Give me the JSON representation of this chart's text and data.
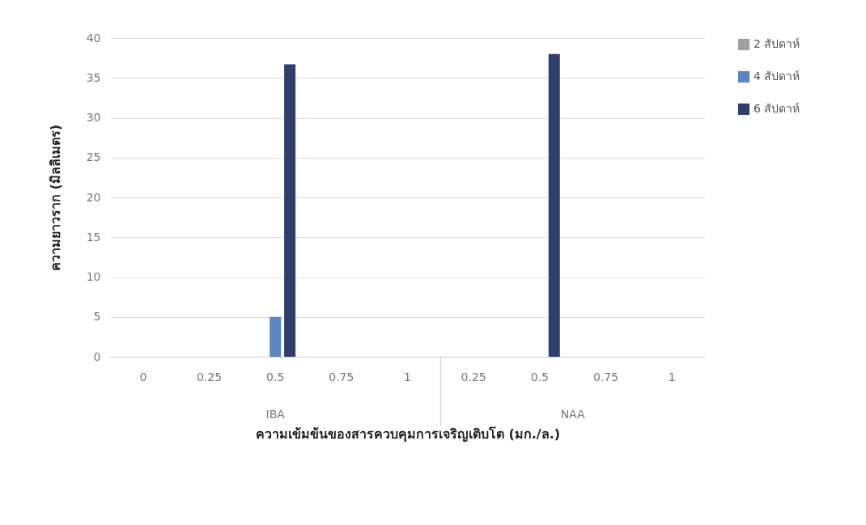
{
  "chart_data": {
    "type": "bar",
    "xlabel": "ความเข้มข้นของสารควบคุมการเจริญเติบโต (มก./ล.)",
    "ylabel": "ความยาวราก (มิลลิเมตร)",
    "categories": [
      "0",
      "0.25",
      "0.5",
      "0.75",
      "1",
      "0.25",
      "0.5",
      "0.75",
      "1"
    ],
    "series": [
      {
        "name": "2 สัปดาห์",
        "color": "#a0a0a0",
        "values": [
          0,
          0,
          0,
          0,
          0,
          0,
          0,
          0,
          0
        ]
      },
      {
        "name": "4 สัปดาห์",
        "color": "#5b86c5",
        "values": [
          0,
          0,
          5,
          0,
          0,
          0,
          0,
          0,
          0
        ]
      },
      {
        "name": "6 สัปดาห์",
        "color": "#2e3f6e",
        "values": [
          0,
          0,
          36.7,
          0,
          0,
          0,
          38,
          0,
          0
        ]
      }
    ],
    "annotations": [
      "IBA",
      "NAA"
    ],
    "ylim": [
      0,
      40
    ],
    "yticks": [
      0,
      5,
      10,
      15,
      20,
      25,
      30,
      35,
      40
    ],
    "grid": "y",
    "legend": "right"
  }
}
